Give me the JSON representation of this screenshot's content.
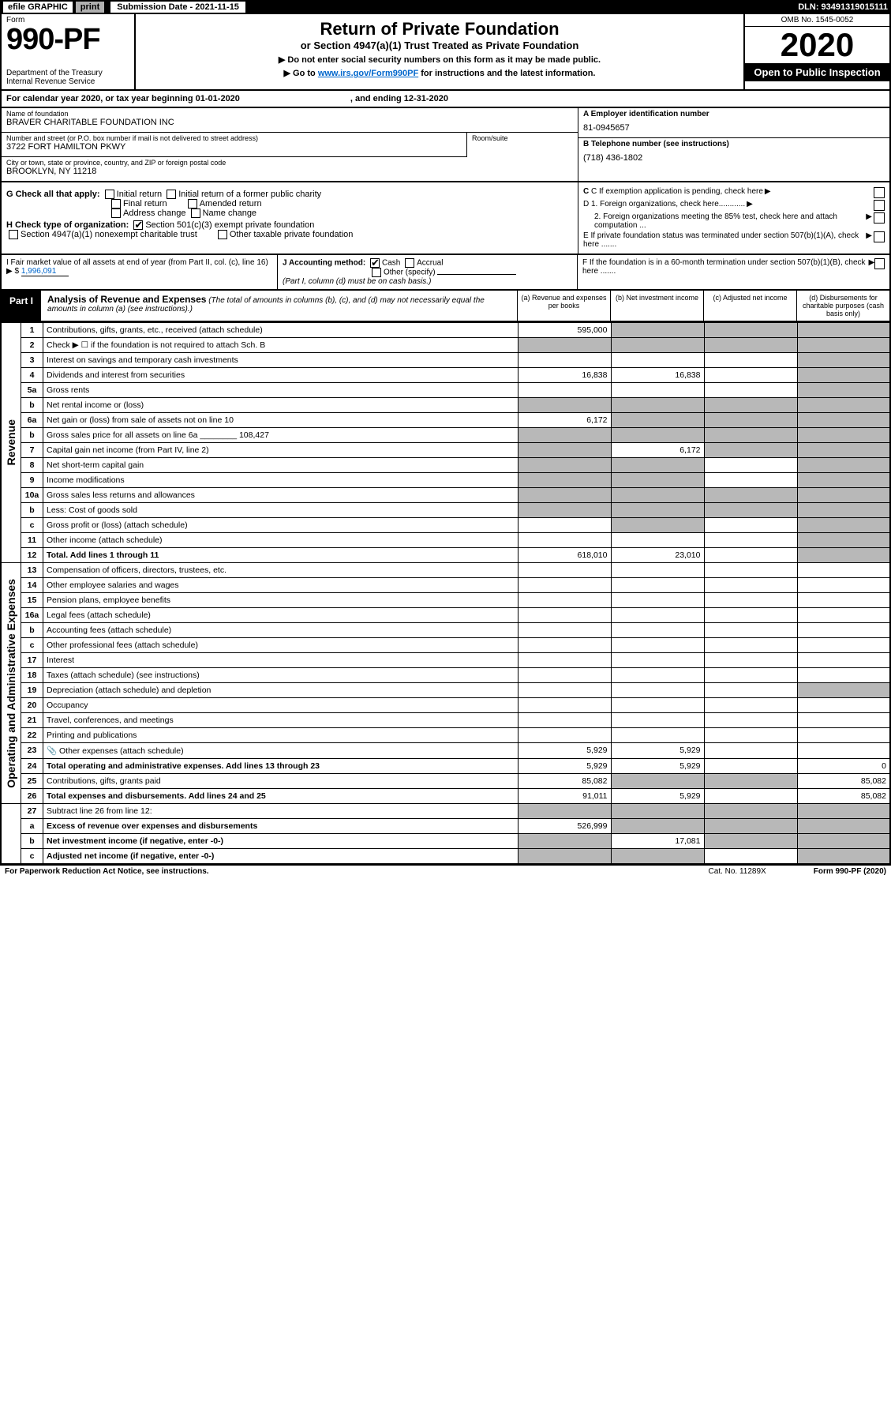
{
  "topBar": {
    "efile": "efile GRAPHIC",
    "print": "print",
    "submissionLabel": "Submission Date - 2021-11-15",
    "dln": "DLN: 93491319015111"
  },
  "header": {
    "formLabel": "Form",
    "formNum": "990-PF",
    "dept": "Department of the Treasury",
    "irs": "Internal Revenue Service",
    "title": "Return of Private Foundation",
    "subtitle": "or Section 4947(a)(1) Trust Treated as Private Foundation",
    "note1": "▶ Do not enter social security numbers on this form as it may be made public.",
    "note2a": "▶ Go to ",
    "note2link": "www.irs.gov/Form990PF",
    "note2b": " for instructions and the latest information.",
    "omb": "OMB No. 1545-0052",
    "year": "2020",
    "open": "Open to Public Inspection"
  },
  "calRow": {
    "a": "For calendar year 2020, or tax year beginning 01-01-2020",
    "b": ", and ending 12-31-2020"
  },
  "id": {
    "nameLbl": "Name of foundation",
    "name": "BRAVER CHARITABLE FOUNDATION INC",
    "addrLbl": "Number and street (or P.O. box number if mail is not delivered to street address)",
    "addr": "3722 FORT HAMILTON PKWY",
    "roomLbl": "Room/suite",
    "cityLbl": "City or town, state or province, country, and ZIP or foreign postal code",
    "city": "BROOKLYN, NY  11218",
    "aLbl": "A Employer identification number",
    "ein": "81-0945657",
    "bLbl": "B Telephone number (see instructions)",
    "phone": "(718) 436-1802",
    "cLbl": "C If exemption application is pending, check here",
    "d1": "D 1. Foreign organizations, check here............",
    "d2": "2. Foreign organizations meeting the 85% test, check here and attach computation ...",
    "e": "E  If private foundation status was terminated under section 507(b)(1)(A), check here .......",
    "f": "F  If the foundation is in a 60-month termination under section 507(b)(1)(B), check here ......."
  },
  "g": {
    "label": "G Check all that apply:",
    "opts": [
      "Initial return",
      "Initial return of a former public charity",
      "Final return",
      "Amended return",
      "Address change",
      "Name change"
    ]
  },
  "h": {
    "label": "H Check type of organization:",
    "opt1": "Section 501(c)(3) exempt private foundation",
    "opt2": "Section 4947(a)(1) nonexempt charitable trust",
    "opt3": "Other taxable private foundation"
  },
  "i": {
    "label": "I Fair market value of all assets at end of year (from Part II, col. (c), line 16) ▶ $",
    "val": "1,996,091"
  },
  "j": {
    "label": "J Accounting method:",
    "cash": "Cash",
    "accrual": "Accrual",
    "other": "Other (specify)",
    "note": "(Part I, column (d) must be on cash basis.)"
  },
  "part1": {
    "tag": "Part I",
    "title": "Analysis of Revenue and Expenses",
    "note": " (The total of amounts in columns (b), (c), and (d) may not necessarily equal the amounts in column (a) (see instructions).)",
    "colA": "(a) Revenue and expenses per books",
    "colB": "(b) Net investment income",
    "colC": "(c) Adjusted net income",
    "colD": "(d) Disbursements for charitable purposes (cash basis only)"
  },
  "sideRev": "Revenue",
  "sideExp": "Operating and Administrative Expenses",
  "rows": [
    {
      "n": "1",
      "t": "Contributions, gifts, grants, etc., received (attach schedule)",
      "a": "595,000",
      "bShade": true,
      "cShade": true,
      "dShade": true
    },
    {
      "n": "2",
      "t": "Check ▶ ☐ if the foundation is not required to attach Sch. B",
      "aShade": true,
      "bShade": true,
      "cShade": true,
      "dShade": true,
      "bold": false
    },
    {
      "n": "3",
      "t": "Interest on savings and temporary cash investments",
      "a": "",
      "b": "",
      "c": "",
      "dShade": true
    },
    {
      "n": "4",
      "t": "Dividends and interest from securities",
      "a": "16,838",
      "b": "16,838",
      "c": "",
      "dShade": true
    },
    {
      "n": "5a",
      "t": "Gross rents",
      "a": "",
      "b": "",
      "c": "",
      "dShade": true
    },
    {
      "n": "b",
      "t": "Net rental income or (loss)",
      "aShade": true,
      "bShade": true,
      "cShade": true,
      "dShade": true
    },
    {
      "n": "6a",
      "t": "Net gain or (loss) from sale of assets not on line 10",
      "a": "6,172",
      "bShade": true,
      "cShade": true,
      "dShade": true
    },
    {
      "n": "b",
      "t": "Gross sales price for all assets on line 6a ________ 108,427",
      "aShade": true,
      "bShade": true,
      "cShade": true,
      "dShade": true
    },
    {
      "n": "7",
      "t": "Capital gain net income (from Part IV, line 2)",
      "aShade": true,
      "b": "6,172",
      "cShade": true,
      "dShade": true
    },
    {
      "n": "8",
      "t": "Net short-term capital gain",
      "aShade": true,
      "bShade": true,
      "c": "",
      "dShade": true
    },
    {
      "n": "9",
      "t": "Income modifications",
      "aShade": true,
      "bShade": true,
      "c": "",
      "dShade": true
    },
    {
      "n": "10a",
      "t": "Gross sales less returns and allowances",
      "aShade": true,
      "bShade": true,
      "cShade": true,
      "dShade": true
    },
    {
      "n": "b",
      "t": "Less: Cost of goods sold",
      "aShade": true,
      "bShade": true,
      "cShade": true,
      "dShade": true
    },
    {
      "n": "c",
      "t": "Gross profit or (loss) (attach schedule)",
      "a": "",
      "bShade": true,
      "c": "",
      "dShade": true
    },
    {
      "n": "11",
      "t": "Other income (attach schedule)",
      "a": "",
      "b": "",
      "c": "",
      "dShade": true
    },
    {
      "n": "12",
      "t": "Total. Add lines 1 through 11",
      "a": "618,010",
      "b": "23,010",
      "c": "",
      "dShade": true,
      "bold": true
    }
  ],
  "expRows": [
    {
      "n": "13",
      "t": "Compensation of officers, directors, trustees, etc.",
      "a": "",
      "b": "",
      "c": "",
      "d": ""
    },
    {
      "n": "14",
      "t": "Other employee salaries and wages",
      "a": "",
      "b": "",
      "c": "",
      "d": ""
    },
    {
      "n": "15",
      "t": "Pension plans, employee benefits",
      "a": "",
      "b": "",
      "c": "",
      "d": ""
    },
    {
      "n": "16a",
      "t": "Legal fees (attach schedule)",
      "a": "",
      "b": "",
      "c": "",
      "d": ""
    },
    {
      "n": "b",
      "t": "Accounting fees (attach schedule)",
      "a": "",
      "b": "",
      "c": "",
      "d": ""
    },
    {
      "n": "c",
      "t": "Other professional fees (attach schedule)",
      "a": "",
      "b": "",
      "c": "",
      "d": ""
    },
    {
      "n": "17",
      "t": "Interest",
      "a": "",
      "b": "",
      "c": "",
      "d": ""
    },
    {
      "n": "18",
      "t": "Taxes (attach schedule) (see instructions)",
      "a": "",
      "b": "",
      "c": "",
      "d": ""
    },
    {
      "n": "19",
      "t": "Depreciation (attach schedule) and depletion",
      "a": "",
      "b": "",
      "c": "",
      "dShade": true
    },
    {
      "n": "20",
      "t": "Occupancy",
      "a": "",
      "b": "",
      "c": "",
      "d": ""
    },
    {
      "n": "21",
      "t": "Travel, conferences, and meetings",
      "a": "",
      "b": "",
      "c": "",
      "d": ""
    },
    {
      "n": "22",
      "t": "Printing and publications",
      "a": "",
      "b": "",
      "c": "",
      "d": ""
    },
    {
      "n": "23",
      "t": "Other expenses (attach schedule)",
      "a": "5,929",
      "b": "5,929",
      "c": "",
      "d": "",
      "icon": true
    },
    {
      "n": "24",
      "t": "Total operating and administrative expenses. Add lines 13 through 23",
      "a": "5,929",
      "b": "5,929",
      "c": "",
      "d": "0",
      "bold": true
    },
    {
      "n": "25",
      "t": "Contributions, gifts, grants paid",
      "a": "85,082",
      "bShade": true,
      "cShade": true,
      "d": "85,082"
    },
    {
      "n": "26",
      "t": "Total expenses and disbursements. Add lines 24 and 25",
      "a": "91,011",
      "b": "5,929",
      "c": "",
      "d": "85,082",
      "bold": true
    }
  ],
  "sumRows": [
    {
      "n": "27",
      "t": "Subtract line 26 from line 12:",
      "aShade": true,
      "bShade": true,
      "cShade": true,
      "dShade": true
    },
    {
      "n": "a",
      "t": "Excess of revenue over expenses and disbursements",
      "a": "526,999",
      "bShade": true,
      "cShade": true,
      "dShade": true,
      "bold": true
    },
    {
      "n": "b",
      "t": "Net investment income (if negative, enter -0-)",
      "aShade": true,
      "b": "17,081",
      "cShade": true,
      "dShade": true,
      "bold": true
    },
    {
      "n": "c",
      "t": "Adjusted net income (if negative, enter -0-)",
      "aShade": true,
      "bShade": true,
      "c": "",
      "dShade": true,
      "bold": true
    }
  ],
  "footer": {
    "left": "For Paperwork Reduction Act Notice, see instructions.",
    "cat": "Cat. No. 11289X",
    "right": "Form 990-PF (2020)"
  }
}
